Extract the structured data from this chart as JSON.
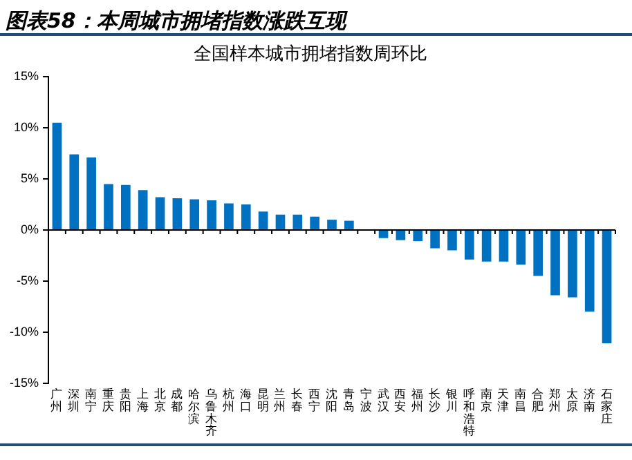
{
  "chart_data": {
    "type": "bar",
    "subtitle": "图表58：本周城市拥堵指数涨跌互现",
    "title": "全国样本城市拥堵指数周环比",
    "categories": [
      "广州",
      "深圳",
      "南宁",
      "重庆",
      "贵阳",
      "上海",
      "北京",
      "成都",
      "哈尔滨",
      "乌鲁木齐",
      "杭州",
      "海口",
      "昆明",
      "兰州",
      "长春",
      "西宁",
      "沈阳",
      "青岛",
      "宁波",
      "武汉",
      "西安",
      "福州",
      "长沙",
      "银川",
      "呼和浩特",
      "南京",
      "天津",
      "南昌",
      "合肥",
      "郑州",
      "太原",
      "济南",
      "石家庄"
    ],
    "values": [
      10.5,
      7.4,
      7.1,
      4.5,
      4.4,
      3.9,
      3.2,
      3.1,
      3.0,
      2.9,
      2.6,
      2.5,
      1.8,
      1.5,
      1.5,
      1.3,
      1.0,
      0.9,
      0,
      -0.8,
      -1.0,
      -1.1,
      -1.8,
      -2.0,
      -2.9,
      -3.1,
      -3.1,
      -3.4,
      -4.5,
      -6.4,
      -6.6,
      -8.0,
      -11.1
    ],
    "color": "#0070c0",
    "ylim": [
      -15,
      15
    ],
    "yticks": [
      {
        "value": -15,
        "label": "-15%"
      },
      {
        "value": -10,
        "label": "-10%"
      },
      {
        "value": -5,
        "label": "-5%"
      },
      {
        "value": 0,
        "label": "0%"
      },
      {
        "value": 5,
        "label": "5%"
      },
      {
        "value": 10,
        "label": "10%"
      },
      {
        "value": 15,
        "label": "15%"
      }
    ],
    "legend": false
  }
}
